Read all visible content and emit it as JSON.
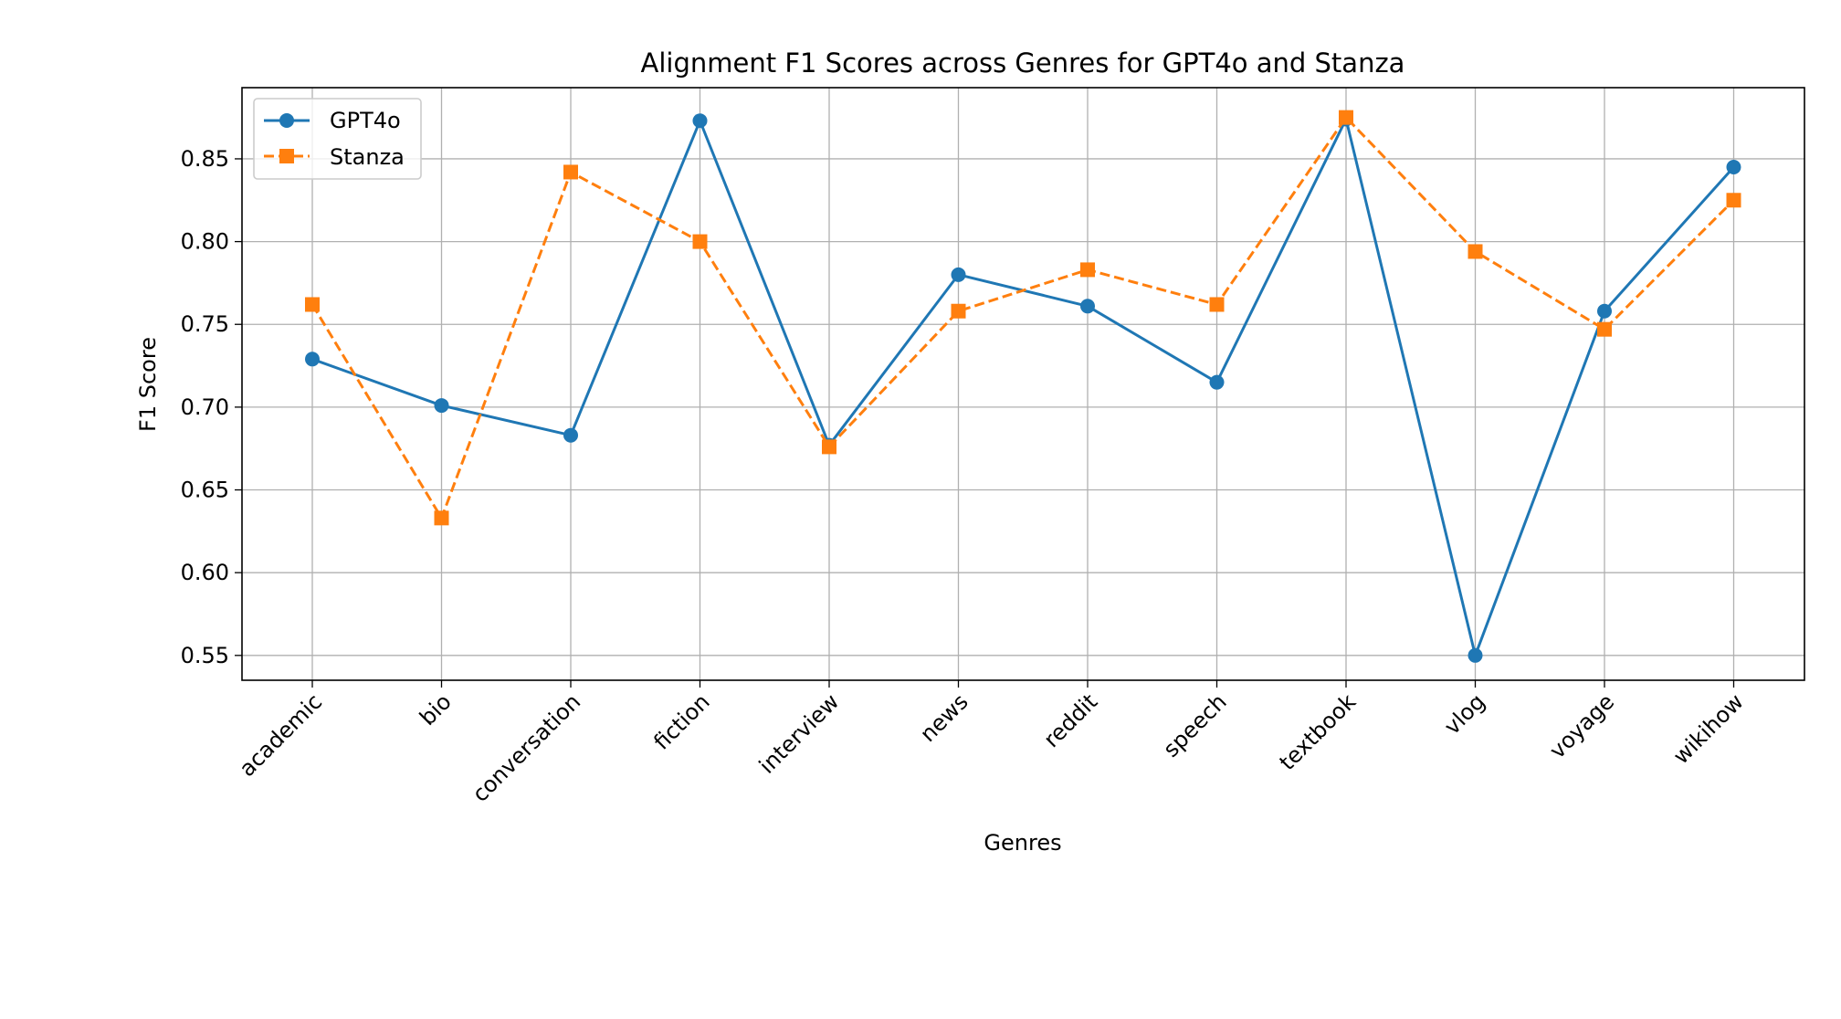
{
  "chart_data": {
    "type": "line",
    "title": "Alignment F1 Scores across Genres for GPT4o and Stanza",
    "xlabel": "Genres",
    "ylabel": "F1 Score",
    "categories": [
      "academic",
      "bio",
      "conversation",
      "fiction",
      "interview",
      "news",
      "reddit",
      "speech",
      "textbook",
      "vlog",
      "voyage",
      "wikihow"
    ],
    "ylim": [
      0.535,
      0.893
    ],
    "yticks": [
      "0.55",
      "0.60",
      "0.65",
      "0.70",
      "0.75",
      "0.80",
      "0.85"
    ],
    "grid": true,
    "legend_position": "upper left",
    "series": [
      {
        "name": "GPT4o",
        "color": "#1f77b4",
        "marker": "circle",
        "linestyle": "solid",
        "values": [
          0.729,
          0.701,
          0.683,
          0.873,
          0.677,
          0.78,
          0.761,
          0.715,
          0.874,
          0.55,
          0.758,
          0.845
        ]
      },
      {
        "name": "Stanza",
        "color": "#ff7f0e",
        "marker": "square",
        "linestyle": "dashed",
        "values": [
          0.762,
          0.633,
          0.842,
          0.8,
          0.676,
          0.758,
          0.783,
          0.762,
          0.875,
          0.794,
          0.747,
          0.825
        ]
      }
    ]
  }
}
